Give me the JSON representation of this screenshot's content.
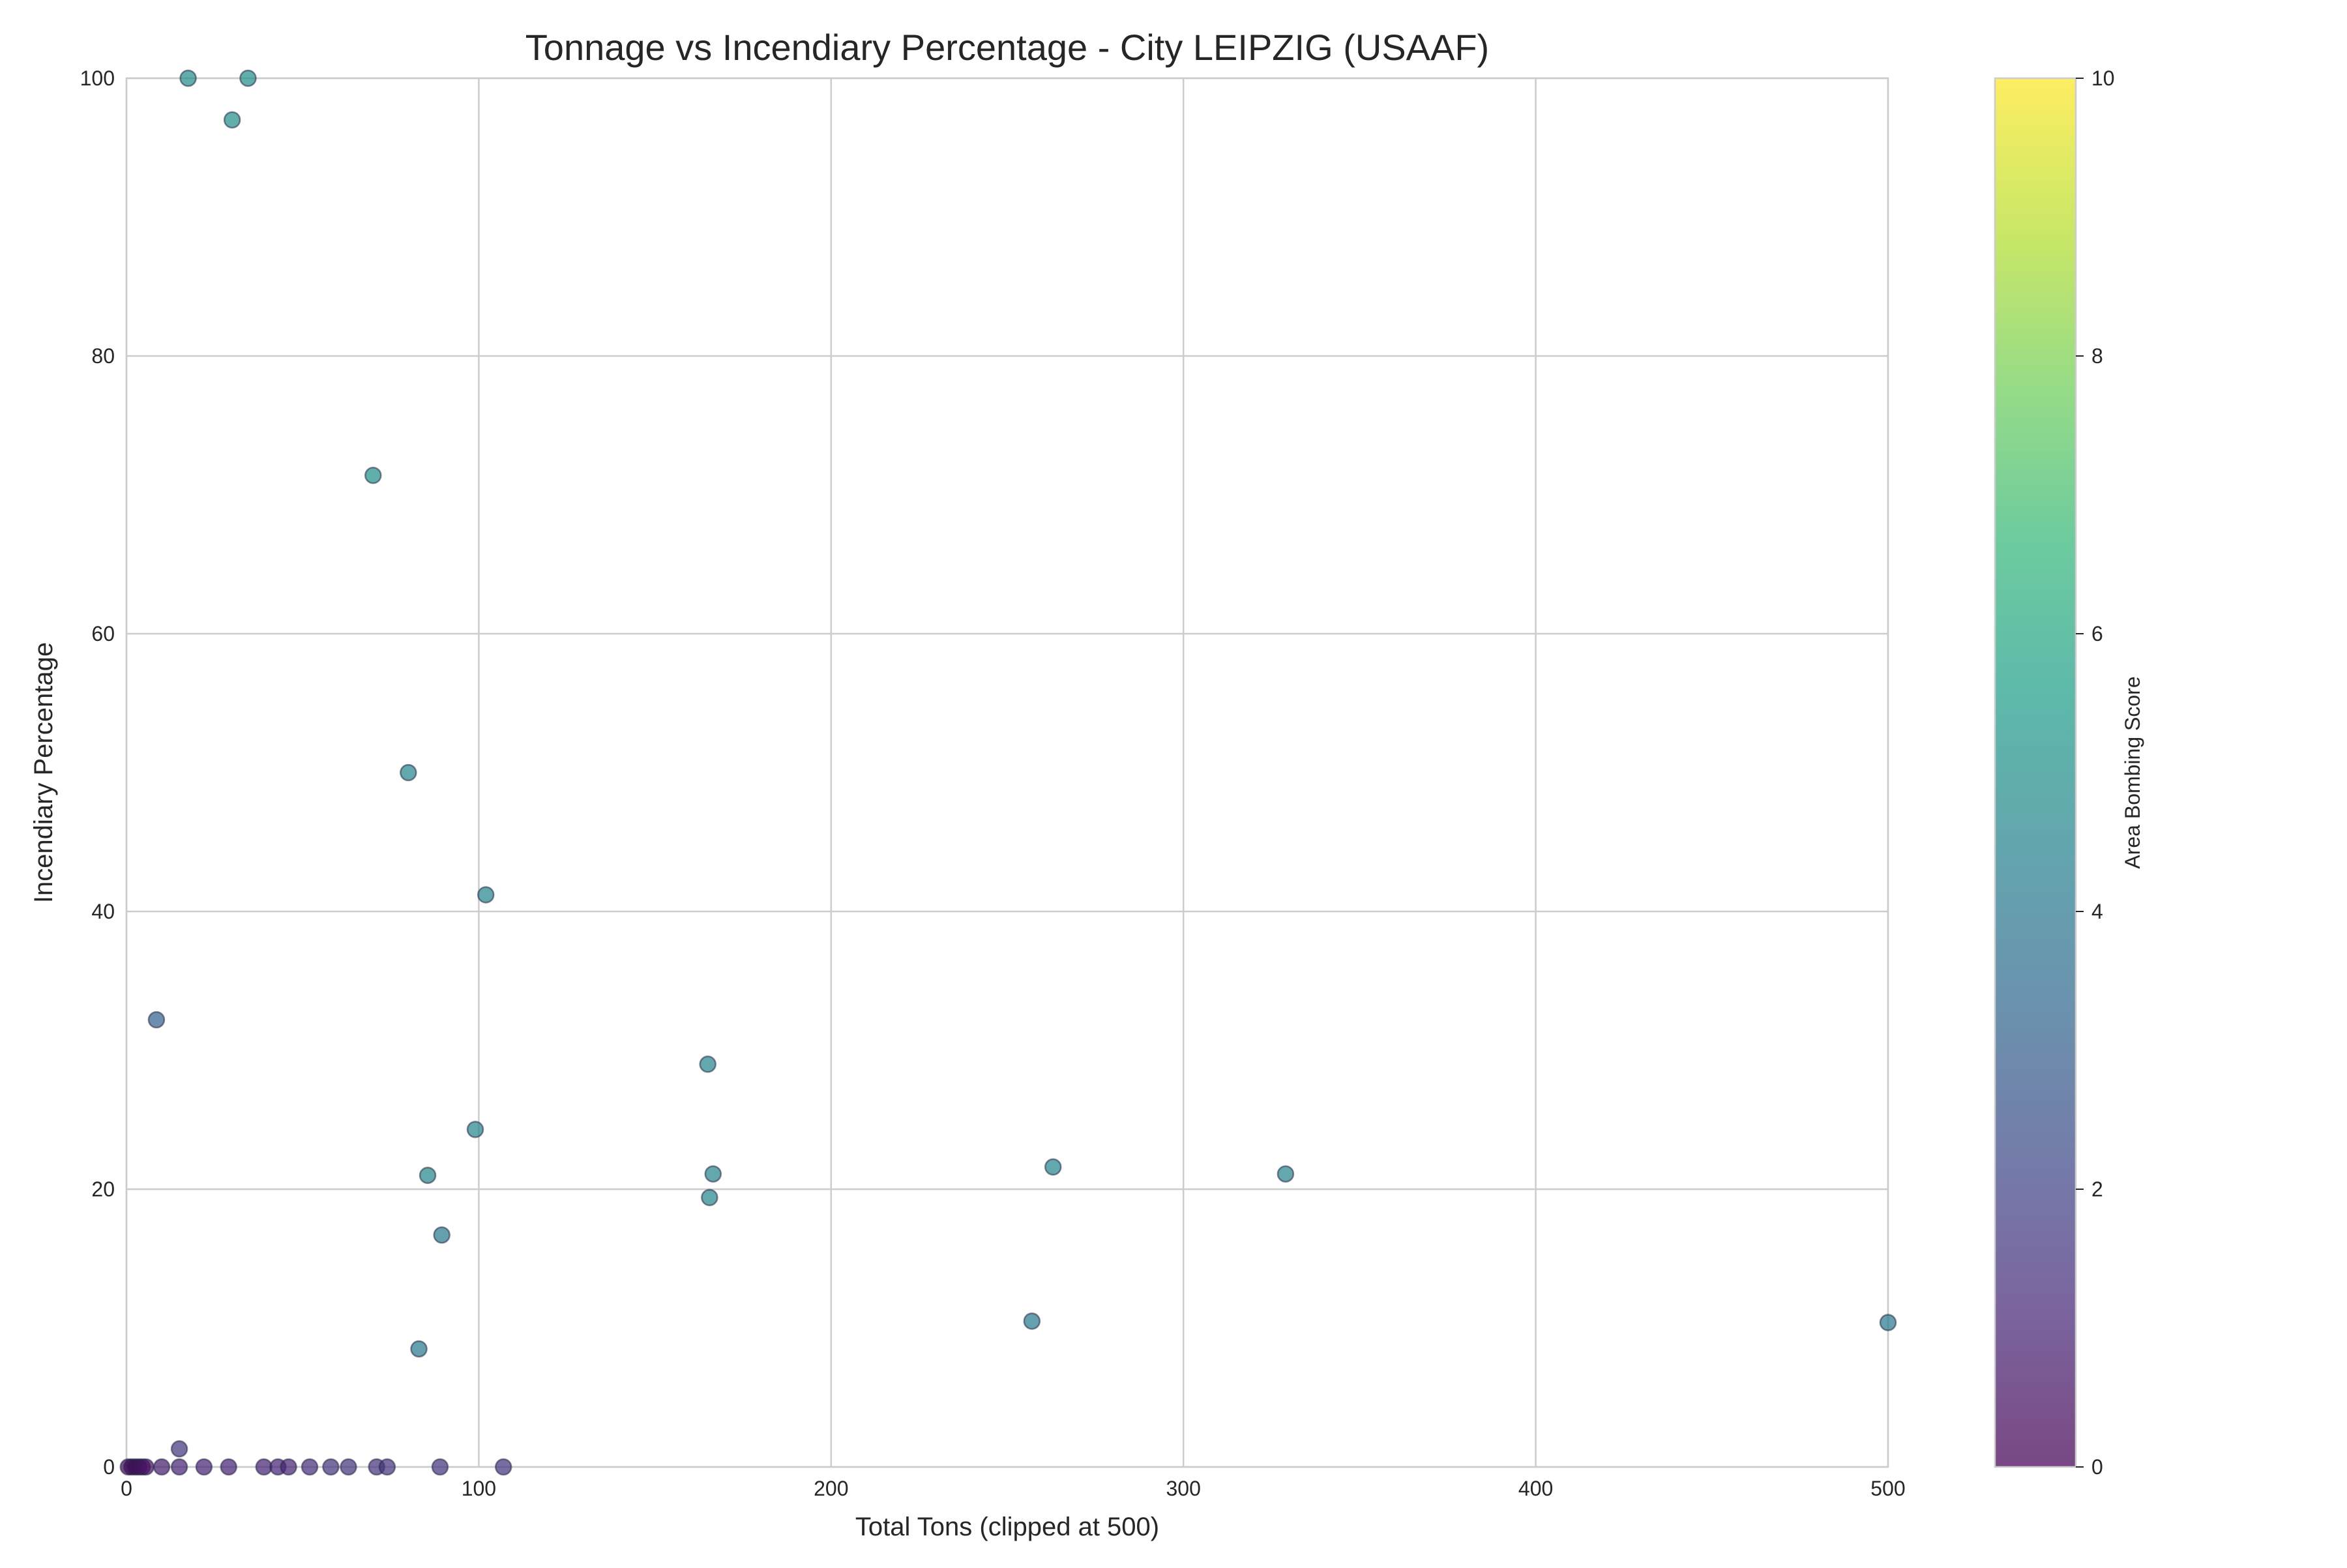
{
  "chart_data": {
    "type": "scatter",
    "title": "Tonnage vs Incendiary Percentage - City LEIPZIG (USAAF)",
    "xlabel": "Total Tons (clipped at 500)",
    "ylabel": "Incendiary Percentage",
    "xlim": [
      0,
      500
    ],
    "ylim": [
      0,
      100
    ],
    "xticks": [
      "0",
      "100",
      "200",
      "300",
      "400",
      "500"
    ],
    "yticks": [
      "0",
      "20",
      "40",
      "60",
      "80",
      "100"
    ],
    "grid": true,
    "colorbar": {
      "label": "Area Bombing Score",
      "range": [
        0,
        10
      ],
      "ticks": [
        "0",
        "2",
        "4",
        "6",
        "8",
        "10"
      ],
      "colormap": "viridis"
    },
    "points": [
      {
        "x": 17.5,
        "y": 100,
        "c": 5
      },
      {
        "x": 34.5,
        "y": 100,
        "c": 5
      },
      {
        "x": 30,
        "y": 97,
        "c": 5
      },
      {
        "x": 70,
        "y": 71.4,
        "c": 5
      },
      {
        "x": 80,
        "y": 50,
        "c": 4.6
      },
      {
        "x": 102,
        "y": 41.2,
        "c": 4.6
      },
      {
        "x": 8.5,
        "y": 32.2,
        "c": 3.2
      },
      {
        "x": 165,
        "y": 29,
        "c": 4.6
      },
      {
        "x": 99,
        "y": 24.3,
        "c": 4.6
      },
      {
        "x": 263,
        "y": 21.6,
        "c": 4.6
      },
      {
        "x": 85.5,
        "y": 21,
        "c": 4.6
      },
      {
        "x": 166.5,
        "y": 21.1,
        "c": 4.6
      },
      {
        "x": 329,
        "y": 21.1,
        "c": 4.6
      },
      {
        "x": 165.5,
        "y": 19.4,
        "c": 4.6
      },
      {
        "x": 89.5,
        "y": 16.7,
        "c": 4.2
      },
      {
        "x": 257,
        "y": 10.5,
        "c": 4.2
      },
      {
        "x": 500,
        "y": 10.4,
        "c": 4.2
      },
      {
        "x": 83,
        "y": 8.5,
        "c": 4.2
      },
      {
        "x": 15,
        "y": 1.3,
        "c": 1.6
      },
      {
        "x": 0.5,
        "y": 0,
        "c": 0.2
      },
      {
        "x": 1.5,
        "y": 0,
        "c": 0.2
      },
      {
        "x": 2.5,
        "y": 0,
        "c": 0.2
      },
      {
        "x": 3.5,
        "y": 0,
        "c": 0.3
      },
      {
        "x": 4.5,
        "y": 0,
        "c": 0.4
      },
      {
        "x": 5.5,
        "y": 0,
        "c": 0.5
      },
      {
        "x": 10,
        "y": 0,
        "c": 0.8
      },
      {
        "x": 15,
        "y": 0,
        "c": 1
      },
      {
        "x": 22,
        "y": 0,
        "c": 1
      },
      {
        "x": 29,
        "y": 0,
        "c": 1
      },
      {
        "x": 39,
        "y": 0,
        "c": 1
      },
      {
        "x": 43,
        "y": 0,
        "c": 1
      },
      {
        "x": 46,
        "y": 0,
        "c": 1
      },
      {
        "x": 52,
        "y": 0,
        "c": 1.3
      },
      {
        "x": 58,
        "y": 0,
        "c": 1.5
      },
      {
        "x": 63,
        "y": 0,
        "c": 1.5
      },
      {
        "x": 71,
        "y": 0,
        "c": 1.5
      },
      {
        "x": 74,
        "y": 0,
        "c": 1.5
      },
      {
        "x": 89,
        "y": 0,
        "c": 1.5
      },
      {
        "x": 107,
        "y": 0,
        "c": 1.5
      }
    ]
  }
}
